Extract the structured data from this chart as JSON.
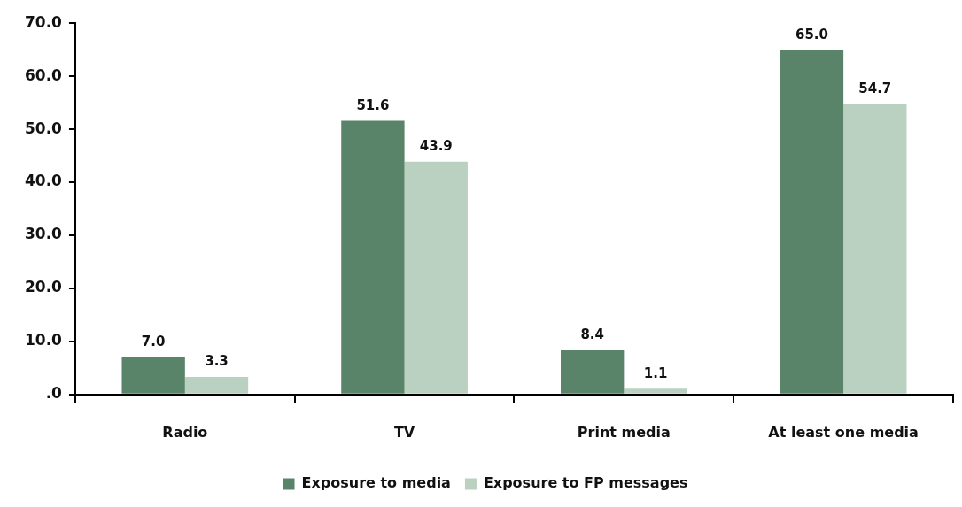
{
  "chart_data": {
    "type": "bar",
    "categories": [
      "Radio",
      "TV",
      "Print media",
      "At least one media"
    ],
    "series": [
      {
        "name": "Exposure to media",
        "color": "#5a8469",
        "values": [
          7.0,
          51.6,
          8.4,
          65.0
        ],
        "value_labels": [
          "7.0",
          "51.6",
          "8.4",
          "65.0"
        ]
      },
      {
        "name": "Exposure to FP messages",
        "color": "#bad1c2",
        "values": [
          3.3,
          43.9,
          1.1,
          54.7
        ],
        "value_labels": [
          "3.3",
          "43.9",
          "1.1",
          "54.7"
        ]
      }
    ],
    "ylim": [
      0,
      70
    ],
    "yticks": [
      {
        "value": 0,
        "label": ".0"
      },
      {
        "value": 10,
        "label": "10.0"
      },
      {
        "value": 20,
        "label": "20.0"
      },
      {
        "value": 30,
        "label": "30.0"
      },
      {
        "value": 40,
        "label": "40.0"
      },
      {
        "value": 50,
        "label": "50.0"
      },
      {
        "value": 60,
        "label": "60.0"
      },
      {
        "value": 70,
        "label": "70.0"
      }
    ],
    "grid": false,
    "legend": "bottom"
  }
}
